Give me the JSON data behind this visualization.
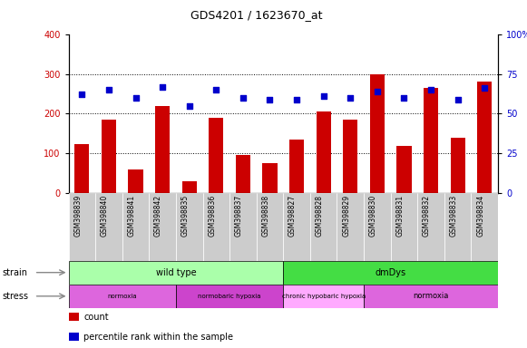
{
  "title": "GDS4201 / 1623670_at",
  "samples": [
    "GSM398839",
    "GSM398840",
    "GSM398841",
    "GSM398842",
    "GSM398835",
    "GSM398836",
    "GSM398837",
    "GSM398838",
    "GSM398827",
    "GSM398828",
    "GSM398829",
    "GSM398830",
    "GSM398831",
    "GSM398832",
    "GSM398833",
    "GSM398834"
  ],
  "counts": [
    122,
    185,
    60,
    220,
    30,
    190,
    95,
    75,
    135,
    205,
    185,
    300,
    118,
    265,
    138,
    280
  ],
  "percentile_ranks": [
    62,
    65,
    60,
    67,
    55,
    65,
    60,
    59,
    59,
    61,
    60,
    64,
    60,
    65,
    59,
    66
  ],
  "count_ylim": [
    0,
    400
  ],
  "percentile_ylim": [
    0,
    100
  ],
  "count_yticks": [
    0,
    100,
    200,
    300,
    400
  ],
  "percentile_yticks": [
    0,
    25,
    50,
    75,
    100
  ],
  "percentile_yticklabels": [
    "0",
    "25",
    "50",
    "75",
    "100%"
  ],
  "bar_color": "#cc0000",
  "dot_color": "#0000cc",
  "strain_groups": [
    {
      "label": "wild type",
      "start": 0,
      "end": 8,
      "color": "#aaffaa"
    },
    {
      "label": "dmDys",
      "start": 8,
      "end": 16,
      "color": "#44dd44"
    }
  ],
  "stress_groups": [
    {
      "label": "normoxia",
      "start": 0,
      "end": 4,
      "color": "#dd66dd"
    },
    {
      "label": "normobaric hypoxia",
      "start": 4,
      "end": 8,
      "color": "#cc44cc"
    },
    {
      "label": "chronic hypobaric hypoxia",
      "start": 8,
      "end": 11,
      "color": "#ffaaff"
    },
    {
      "label": "normoxia",
      "start": 11,
      "end": 16,
      "color": "#dd66dd"
    }
  ],
  "legend_items": [
    {
      "label": "count",
      "color": "#cc0000"
    },
    {
      "label": "percentile rank within the sample",
      "color": "#0000cc"
    }
  ],
  "tick_label_bg": "#cccccc"
}
